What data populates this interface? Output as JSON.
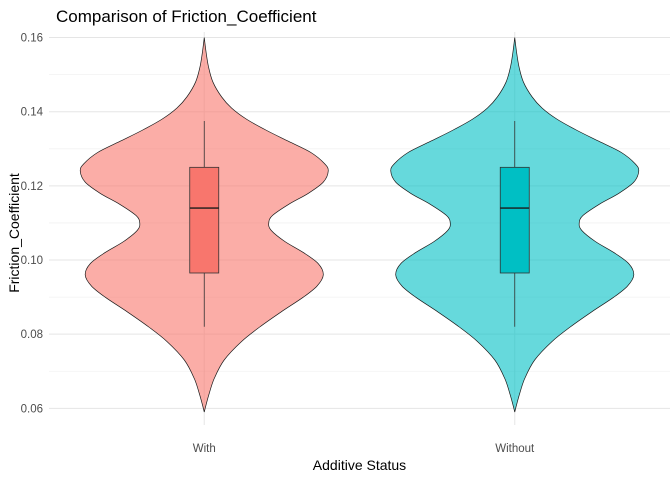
{
  "chart_data": {
    "type": "violin",
    "title": "Comparison of Friction_Coefficient",
    "xlabel": "Additive Status",
    "ylabel": "Friction_Coefficient",
    "ylim": [
      0.0555,
      0.1615
    ],
    "yticks": [
      0.06,
      0.08,
      0.1,
      0.12,
      0.14,
      0.16
    ],
    "ytick_labels": [
      "0.06",
      "0.08",
      "0.10",
      "0.12",
      "0.14",
      "0.16"
    ],
    "grid": true,
    "legend": "none",
    "categories": [
      "With",
      "Without"
    ],
    "groups": [
      {
        "category": "With",
        "color": "#F8766D",
        "violin": {
          "min": 0.059,
          "max": 0.16
        },
        "box": {
          "whisker_low": 0.082,
          "q1": 0.0965,
          "median": 0.114,
          "q3": 0.125,
          "whisker_high": 0.1375
        }
      },
      {
        "category": "Without",
        "color": "#00BFC4",
        "violin": {
          "min": 0.059,
          "max": 0.16
        },
        "box": {
          "whisker_low": 0.082,
          "q1": 0.0965,
          "median": 0.114,
          "q3": 0.125,
          "whisker_high": 0.1375
        }
      }
    ],
    "density_profile": [
      [
        0.059,
        0.0
      ],
      [
        0.061,
        0.015
      ],
      [
        0.064,
        0.04
      ],
      [
        0.068,
        0.08
      ],
      [
        0.073,
        0.16
      ],
      [
        0.078,
        0.3
      ],
      [
        0.082,
        0.45
      ],
      [
        0.086,
        0.62
      ],
      [
        0.09,
        0.8
      ],
      [
        0.093,
        0.91
      ],
      [
        0.096,
        0.96
      ],
      [
        0.099,
        0.92
      ],
      [
        0.102,
        0.8
      ],
      [
        0.105,
        0.65
      ],
      [
        0.108,
        0.54
      ],
      [
        0.11,
        0.52
      ],
      [
        0.112,
        0.55
      ],
      [
        0.115,
        0.68
      ],
      [
        0.118,
        0.84
      ],
      [
        0.121,
        0.96
      ],
      [
        0.124,
        1.0
      ],
      [
        0.126,
        0.97
      ],
      [
        0.129,
        0.86
      ],
      [
        0.132,
        0.68
      ],
      [
        0.135,
        0.5
      ],
      [
        0.138,
        0.34
      ],
      [
        0.141,
        0.22
      ],
      [
        0.144,
        0.14
      ],
      [
        0.148,
        0.07
      ],
      [
        0.152,
        0.035
      ],
      [
        0.156,
        0.015
      ],
      [
        0.16,
        0.0
      ]
    ]
  }
}
